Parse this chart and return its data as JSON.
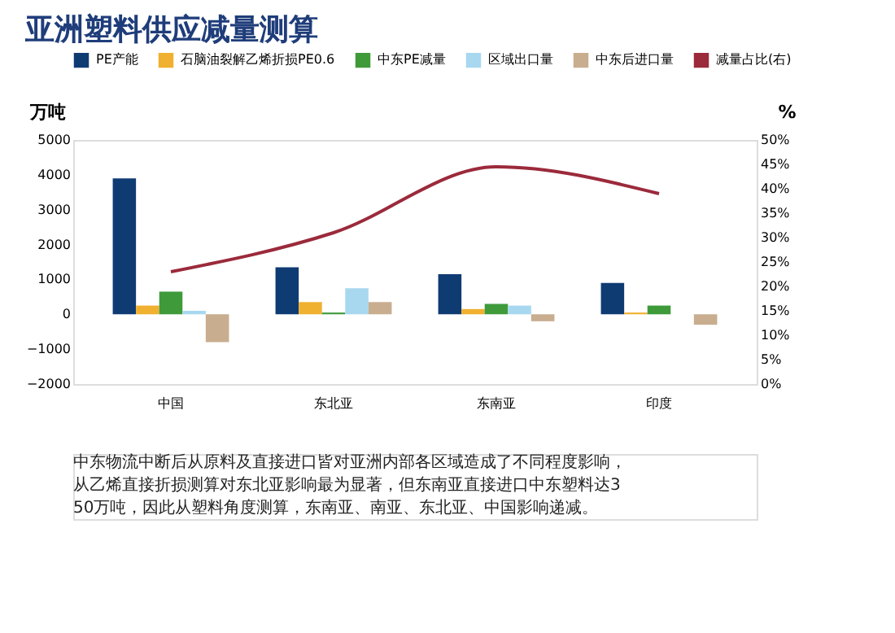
{
  "chart_data": {
    "type": "bar",
    "title": "亚洲塑料供应减量测算",
    "categories": [
      "中国",
      "东北亚",
      "东南亚",
      "印度"
    ],
    "ylabel": "万吨",
    "y2label": "%",
    "ylim": [
      -2000,
      5000
    ],
    "yticks": [
      -2000,
      -1000,
      0,
      1000,
      2000,
      3000,
      4000,
      5000
    ],
    "y2lim": [
      0,
      50
    ],
    "y2ticks": [
      {
        "value": 0,
        "label": "0%"
      },
      {
        "value": 5,
        "label": "5%"
      },
      {
        "value": 10,
        "label": "10%"
      },
      {
        "value": 15,
        "label": "15%"
      },
      {
        "value": 20,
        "label": "20%"
      },
      {
        "value": 25,
        "label": "25%"
      },
      {
        "value": 30,
        "label": "30%"
      },
      {
        "value": 35,
        "label": "35%"
      },
      {
        "value": 40,
        "label": "40%"
      },
      {
        "value": 45,
        "label": "45%"
      },
      {
        "value": 50,
        "label": "50%"
      }
    ],
    "series": [
      {
        "name": "PE产能",
        "color": "#0f3b73",
        "values": [
          3900,
          1350,
          1150,
          900
        ]
      },
      {
        "name": "石脑油裂解乙烯折损PE0.6",
        "color": "#f0b030",
        "values": [
          250,
          350,
          150,
          50
        ]
      },
      {
        "name": "中东PE减量",
        "color": "#3f9a3a",
        "values": [
          650,
          50,
          300,
          250
        ]
      },
      {
        "name": "区域出口量",
        "color": "#a8d8f0",
        "values": [
          100,
          750,
          250,
          0
        ]
      },
      {
        "name": "中东后进口量",
        "color": "#c8ad8f",
        "values": [
          -800,
          350,
          -200,
          -300
        ]
      },
      {
        "name": "减量占比(右)",
        "type": "line",
        "axis": "y2",
        "color": "#9b2a3b",
        "values": [
          23,
          31,
          44.5,
          39
        ]
      }
    ],
    "legend": "top",
    "grid": false,
    "marker": "none",
    "annotations": [
      "中东物流中断后从原料及直接进口皆对亚洲内部各区域造成了不同程度影响，从乙烯直接折损测算对东北亚影响最为显著，但东南亚直接进口中东塑料达350万吨，因此从塑料角度测算，东南亚、南亚、东北亚、中国影响递减。"
    ]
  }
}
